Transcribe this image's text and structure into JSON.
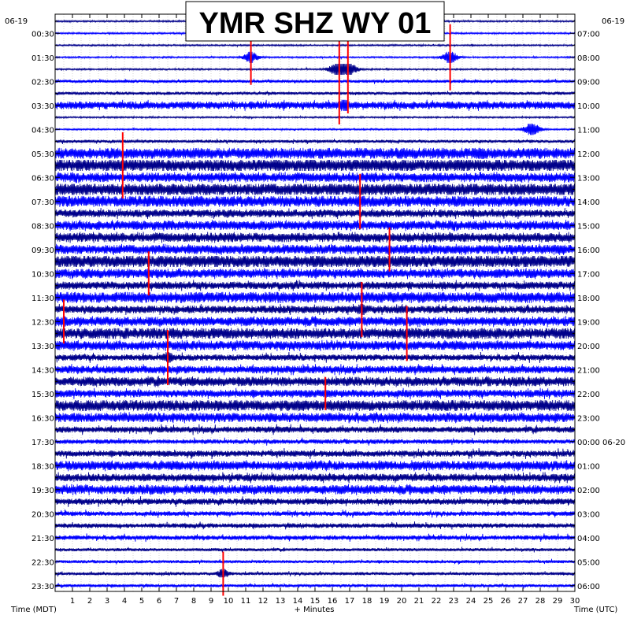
{
  "chart_data": {
    "type": "line",
    "title": "YMR SHZ WY 01",
    "date_left": "06-19",
    "date_right": "06-19",
    "xlabel": "+ Minutes",
    "left_axis_label": "Time (MDT)",
    "right_axis_label": "Time (UTC)",
    "xlim": [
      0,
      30
    ],
    "x_ticks": [
      "1",
      "2",
      "3",
      "4",
      "5",
      "6",
      "7",
      "8",
      "9",
      "10",
      "11",
      "12",
      "13",
      "14",
      "15",
      "16",
      "17",
      "18",
      "19",
      "20",
      "21",
      "22",
      "23",
      "24",
      "25",
      "26",
      "27",
      "28",
      "29",
      "30"
    ],
    "left_ticks": [
      "00:30",
      "01:30",
      "02:30",
      "03:30",
      "04:30",
      "05:30",
      "06:30",
      "07:30",
      "08:30",
      "09:30",
      "10:30",
      "11:30",
      "12:30",
      "13:30",
      "14:30",
      "15:30",
      "16:30",
      "17:30",
      "18:30",
      "19:30",
      "20:30",
      "21:30",
      "22:30",
      "23:30"
    ],
    "right_ticks": [
      "07:00",
      "08:00",
      "09:00",
      "10:00",
      "11:00",
      "12:00",
      "13:00",
      "14:00",
      "15:00",
      "16:00",
      "17:00",
      "18:00",
      "19:00",
      "20:00",
      "21:00",
      "22:00",
      "23:00",
      "00:00 06-20",
      "01:00",
      "02:00",
      "03:00",
      "04:00",
      "05:00",
      "06:00"
    ],
    "trace_count": 48,
    "trace_colors": [
      "#00008b",
      "#0000ff"
    ],
    "clip_color": "#ff0000",
    "grid": true,
    "trace_amplitude": [
      1,
      1,
      1,
      1,
      1,
      2,
      2,
      5,
      1,
      1,
      2,
      7,
      8,
      6,
      8,
      7,
      5,
      6,
      6,
      6,
      8,
      6,
      5,
      7,
      5,
      6,
      7,
      6,
      4,
      5,
      6,
      5,
      7,
      6,
      4,
      3,
      4,
      6,
      5,
      6,
      4,
      3,
      3,
      3,
      2,
      2,
      2,
      2
    ],
    "events": [
      {
        "trace": 4,
        "minute": 16.4,
        "strength": 10,
        "clipped": true
      },
      {
        "trace": 4,
        "minute": 16.9,
        "strength": 8,
        "clipped": true
      },
      {
        "trace": 3,
        "minute": 22.8,
        "strength": 6,
        "clipped": true
      },
      {
        "trace": 3,
        "minute": 11.3,
        "strength": 5,
        "clipped": true
      },
      {
        "trace": 7,
        "minute": 16.7,
        "strength": 6,
        "clipped": false
      },
      {
        "trace": 9,
        "minute": 27.5,
        "strength": 7,
        "clipped": false
      },
      {
        "trace": 11,
        "minute": 24.5,
        "strength": 6,
        "clipped": false
      },
      {
        "trace": 12,
        "minute": 3.9,
        "strength": 6,
        "clipped": true
      },
      {
        "trace": 15,
        "minute": 17.6,
        "strength": 5,
        "clipped": true
      },
      {
        "trace": 19,
        "minute": 19.3,
        "strength": 4,
        "clipped": true
      },
      {
        "trace": 21,
        "minute": 5.4,
        "strength": 4,
        "clipped": true
      },
      {
        "trace": 24,
        "minute": 17.7,
        "strength": 5,
        "clipped": true
      },
      {
        "trace": 25,
        "minute": 0.5,
        "strength": 4,
        "clipped": true
      },
      {
        "trace": 26,
        "minute": 20.3,
        "strength": 5,
        "clipped": true
      },
      {
        "trace": 28,
        "minute": 6.5,
        "strength": 5,
        "clipped": true
      },
      {
        "trace": 31,
        "minute": 15.6,
        "strength": 3,
        "clipped": true
      },
      {
        "trace": 46,
        "minute": 9.7,
        "strength": 4,
        "clipped": true
      }
    ]
  }
}
